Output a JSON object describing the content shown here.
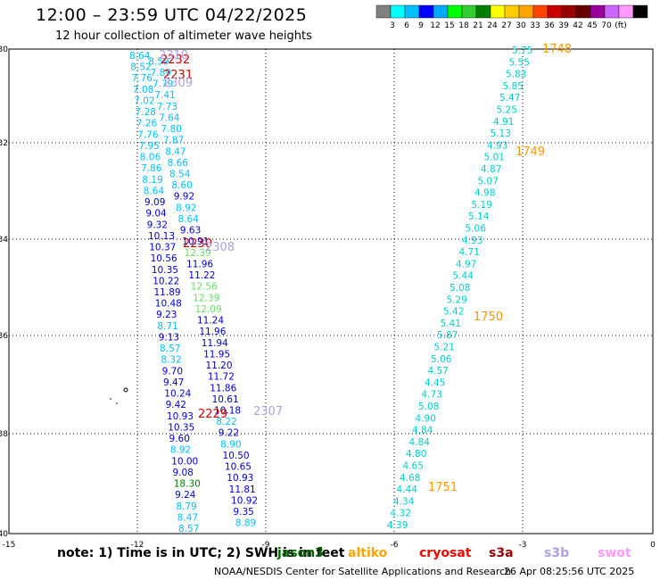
{
  "title": "12:00 – 23:59 UTC 04/22/2025",
  "subtitle": "12 hour collection of altimeter wave heights",
  "colorbar": {
    "colors": [
      "#808080",
      "#00ffff",
      "#00bfff",
      "#0000ff",
      "#00aaff",
      "#00ff00",
      "#33cc33",
      "#008000",
      "#ffff00",
      "#ffcc00",
      "#ffa500",
      "#ff4500",
      "#cc0000",
      "#990000",
      "#660000",
      "#990099",
      "#cc66ff",
      "#ff99ff",
      "#000000"
    ],
    "labels": [
      "3",
      "6",
      "9",
      "12",
      "15",
      "18",
      "21",
      "24",
      "27",
      "30",
      "33",
      "36",
      "39",
      "42",
      "45",
      "70",
      "(ft)"
    ]
  },
  "axes": {
    "lon_labels": [
      "-15",
      "-12",
      "-9",
      "-6",
      "-3",
      "0"
    ],
    "lat_labels": [
      "-30",
      "-32",
      "-34",
      "-36",
      "-38",
      "-40"
    ]
  },
  "footer": {
    "note_prefix": "note:  1) Time is in UTC; 2) SWH is in feet",
    "satellites": [
      {
        "name": "jason3",
        "color": "#006400"
      },
      {
        "name": "altiko",
        "color": "#ffa500"
      },
      {
        "name": "cryosat",
        "color": "#ff0000"
      },
      {
        "name": "s3a",
        "color": "#990000"
      },
      {
        "name": "s3b",
        "color": "#b0a0e0"
      },
      {
        "name": "swot",
        "color": "#ff99ff"
      }
    ],
    "credit": "NOAA/NESDIS Center for Satellite Applications and Research",
    "generated": "26 Apr 08:25:56 UTC 2025"
  },
  "track_left": [
    {
      "t": "8.64",
      "c": "#00bfff"
    },
    {
      "t": "8.59",
      "c": "#00bfff"
    },
    {
      "t": "8.52",
      "c": "#00bfff"
    },
    {
      "t": "7.89",
      "c": "#00bfff"
    },
    {
      "t": "7.76",
      "c": "#00bfff"
    },
    {
      "t": "7.79",
      "c": "#00bfff"
    },
    {
      "t": "7.08",
      "c": "#00bfff"
    },
    {
      "t": "7.41",
      "c": "#00bfff"
    },
    {
      "t": "7.02",
      "c": "#00bfff"
    },
    {
      "t": "7.73",
      "c": "#00bfff"
    },
    {
      "t": "7.28",
      "c": "#00bfff"
    },
    {
      "t": "7.64",
      "c": "#00bfff"
    },
    {
      "t": "7.26",
      "c": "#00bfff"
    },
    {
      "t": "7.80",
      "c": "#00bfff"
    },
    {
      "t": "7.76",
      "c": "#00bfff"
    },
    {
      "t": "7.87",
      "c": "#00bfff"
    },
    {
      "t": "7.95",
      "c": "#00bfff"
    },
    {
      "t": "8.47",
      "c": "#00bfff"
    },
    {
      "t": "8.06",
      "c": "#00bfff"
    },
    {
      "t": "8.66",
      "c": "#00bfff"
    },
    {
      "t": "7.86",
      "c": "#00bfff"
    },
    {
      "t": "8.54",
      "c": "#00bfff"
    },
    {
      "t": "8.19",
      "c": "#00bfff"
    },
    {
      "t": "8.60",
      "c": "#00bfff"
    },
    {
      "t": "8.64",
      "c": "#00bfff"
    },
    {
      "t": "9.92",
      "c": "#0000cc"
    },
    {
      "t": "9.09",
      "c": "#0000cc"
    },
    {
      "t": "8.92",
      "c": "#00bfff"
    },
    {
      "t": "9.04",
      "c": "#0000cc"
    },
    {
      "t": "8.64",
      "c": "#00bfff"
    },
    {
      "t": "9.32",
      "c": "#0000cc"
    },
    {
      "t": "9.63",
      "c": "#0000cc"
    },
    {
      "t": "10.13",
      "c": "#0000cc"
    },
    {
      "t": "10.91",
      "c": "#0000cc"
    },
    {
      "t": "10.37",
      "c": "#0000cc"
    },
    {
      "t": "12.39",
      "c": "#66dd66"
    },
    {
      "t": "10.56",
      "c": "#0000cc"
    },
    {
      "t": "11.96",
      "c": "#0000cc"
    },
    {
      "t": "10.35",
      "c": "#0000cc"
    },
    {
      "t": "11.22",
      "c": "#0000cc"
    },
    {
      "t": "10.22",
      "c": "#0000cc"
    },
    {
      "t": "12.56",
      "c": "#66dd66"
    },
    {
      "t": "11.89",
      "c": "#0000cc"
    },
    {
      "t": "12.39",
      "c": "#66dd66"
    },
    {
      "t": "10.48",
      "c": "#0000cc"
    },
    {
      "t": "12.09",
      "c": "#66dd66"
    },
    {
      "t": "9.23",
      "c": "#0000cc"
    },
    {
      "t": "11.24",
      "c": "#0000cc"
    },
    {
      "t": "8.71",
      "c": "#00bfff"
    },
    {
      "t": "11.96",
      "c": "#0000cc"
    },
    {
      "t": "9.13",
      "c": "#0000cc"
    },
    {
      "t": "11.94",
      "c": "#0000cc"
    },
    {
      "t": "8.57",
      "c": "#00bfff"
    },
    {
      "t": "11.95",
      "c": "#0000cc"
    },
    {
      "t": "8.32",
      "c": "#00bfff"
    },
    {
      "t": "11.20",
      "c": "#0000cc"
    },
    {
      "t": "9.70",
      "c": "#0000cc"
    },
    {
      "t": "11.72",
      "c": "#0000cc"
    },
    {
      "t": "9.47",
      "c": "#0000cc"
    },
    {
      "t": "11.86",
      "c": "#0000cc"
    },
    {
      "t": "10.24",
      "c": "#0000cc"
    },
    {
      "t": "10.61",
      "c": "#0000cc"
    },
    {
      "t": "9.42",
      "c": "#0000cc"
    },
    {
      "t": "10.18",
      "c": "#0000cc"
    },
    {
      "t": "10.93",
      "c": "#0000cc"
    },
    {
      "t": "8.22",
      "c": "#00bfff"
    },
    {
      "t": "10.35",
      "c": "#0000cc"
    },
    {
      "t": "9.22",
      "c": "#0000cc"
    },
    {
      "t": "9.60",
      "c": "#0000cc"
    },
    {
      "t": "8.90",
      "c": "#00bfff"
    },
    {
      "t": "8.92",
      "c": "#00bfff"
    },
    {
      "t": "10.50",
      "c": "#0000cc"
    },
    {
      "t": "10.00",
      "c": "#0000cc"
    },
    {
      "t": "10.65",
      "c": "#0000cc"
    },
    {
      "t": "9.08",
      "c": "#0000cc"
    },
    {
      "t": "10.93",
      "c": "#0000cc"
    },
    {
      "t": "18.30",
      "c": "#008000"
    },
    {
      "t": "11.81",
      "c": "#0000cc"
    },
    {
      "t": "9.24",
      "c": "#0000cc"
    },
    {
      "t": "10.92",
      "c": "#0000cc"
    },
    {
      "t": "8.79",
      "c": "#00bfff"
    },
    {
      "t": "9.35",
      "c": "#0000cc"
    },
    {
      "t": "8.47",
      "c": "#00bfff"
    },
    {
      "t": "8.89",
      "c": "#00bfff"
    },
    {
      "t": "8.57",
      "c": "#00bfff"
    }
  ],
  "track_right": [
    {
      "t": "5.75",
      "c": "#00cccc"
    },
    {
      "t": "5.55",
      "c": "#00cccc"
    },
    {
      "t": "5.83",
      "c": "#00cccc"
    },
    {
      "t": "5.85",
      "c": "#00cccc"
    },
    {
      "t": "5.47",
      "c": "#00cccc"
    },
    {
      "t": "5.25",
      "c": "#00cccc"
    },
    {
      "t": "4.91",
      "c": "#00cccc"
    },
    {
      "t": "5.13",
      "c": "#00cccc"
    },
    {
      "t": "4.93",
      "c": "#00cccc"
    },
    {
      "t": "5.01",
      "c": "#00cccc"
    },
    {
      "t": "4.87",
      "c": "#00cccc"
    },
    {
      "t": "5.07",
      "c": "#00cccc"
    },
    {
      "t": "4.98",
      "c": "#00cccc"
    },
    {
      "t": "5.19",
      "c": "#00cccc"
    },
    {
      "t": "5.14",
      "c": "#00cccc"
    },
    {
      "t": "5.06",
      "c": "#00cccc"
    },
    {
      "t": "4.93",
      "c": "#00cccc"
    },
    {
      "t": "4.71",
      "c": "#00cccc"
    },
    {
      "t": "4.97",
      "c": "#00cccc"
    },
    {
      "t": "5.44",
      "c": "#00cccc"
    },
    {
      "t": "5.08",
      "c": "#00cccc"
    },
    {
      "t": "5.29",
      "c": "#00cccc"
    },
    {
      "t": "5.42",
      "c": "#00cccc"
    },
    {
      "t": "5.41",
      "c": "#00cccc"
    },
    {
      "t": "5.87",
      "c": "#00cccc"
    },
    {
      "t": "5.21",
      "c": "#00cccc"
    },
    {
      "t": "5.06",
      "c": "#00cccc"
    },
    {
      "t": "4.57",
      "c": "#00cccc"
    },
    {
      "t": "4.45",
      "c": "#00cccc"
    },
    {
      "t": "4.73",
      "c": "#00cccc"
    },
    {
      "t": "5.08",
      "c": "#00cccc"
    },
    {
      "t": "4.90",
      "c": "#00cccc"
    },
    {
      "t": "4.84",
      "c": "#00cccc"
    },
    {
      "t": "4.84",
      "c": "#00cccc"
    },
    {
      "t": "4.80",
      "c": "#00cccc"
    },
    {
      "t": "4.65",
      "c": "#00cccc"
    },
    {
      "t": "4.68",
      "c": "#00cccc"
    },
    {
      "t": "4.44",
      "c": "#00cccc"
    },
    {
      "t": "4.34",
      "c": "#00cccc"
    },
    {
      "t": "4.32",
      "c": "#00cccc"
    },
    {
      "t": "4.39",
      "c": "#00cccc"
    }
  ],
  "time_labels": [
    {
      "t": "2232",
      "c": "#cc0000"
    },
    {
      "t": "2310",
      "c": "#b0a0e0"
    },
    {
      "t": "2231",
      "c": "#cc0000"
    },
    {
      "t": "2309",
      "c": "#b0a0e0"
    },
    {
      "t": "2230",
      "c": "#cc0000"
    },
    {
      "t": "2308",
      "c": "#b0a0e0"
    },
    {
      "t": "2229",
      "c": "#cc0000"
    },
    {
      "t": "2307",
      "c": "#b0a0e0"
    },
    {
      "t": "1748",
      "c": "#ff9900"
    },
    {
      "t": "1749",
      "c": "#ff9900"
    },
    {
      "t": "1750",
      "c": "#ff9900"
    },
    {
      "t": "1751",
      "c": "#ff9900"
    }
  ]
}
